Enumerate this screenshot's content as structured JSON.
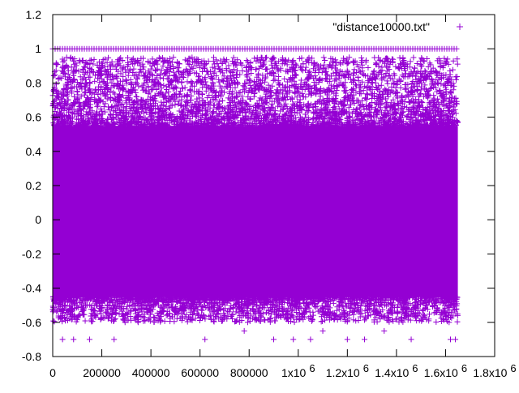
{
  "colors": {
    "series": "#9400d3",
    "axis": "#000000",
    "background": "#ffffff"
  },
  "chart_data": {
    "type": "scatter",
    "marker": "plus",
    "title": "",
    "xlabel": "",
    "ylabel": "",
    "xlim": [
      0,
      1800000
    ],
    "ylim": [
      -0.8,
      1.2
    ],
    "grid": false,
    "legend_position": "top-right",
    "x_ticks": [
      {
        "value": 0,
        "label": "0"
      },
      {
        "value": 200000,
        "label": "200000"
      },
      {
        "value": 400000,
        "label": "400000"
      },
      {
        "value": 600000,
        "label": "600000"
      },
      {
        "value": 800000,
        "label": "800000"
      },
      {
        "value": 1000000,
        "label": "1x10",
        "exp": "6"
      },
      {
        "value": 1200000,
        "label": "1.2x10",
        "exp": "6"
      },
      {
        "value": 1400000,
        "label": "1.4x10",
        "exp": "6"
      },
      {
        "value": 1600000,
        "label": "1.6x10",
        "exp": "6"
      },
      {
        "value": 1800000,
        "label": "1.8x10",
        "exp": "6"
      }
    ],
    "y_ticks": [
      {
        "value": -0.8,
        "label": "-0.8"
      },
      {
        "value": -0.6,
        "label": "-0.6"
      },
      {
        "value": -0.4,
        "label": "-0.4"
      },
      {
        "value": -0.2,
        "label": "-0.2"
      },
      {
        "value": 0,
        "label": "0"
      },
      {
        "value": 0.2,
        "label": "0.2"
      },
      {
        "value": 0.4,
        "label": "0.4"
      },
      {
        "value": 0.6,
        "label": "0.6"
      },
      {
        "value": 0.8,
        "label": "0.8"
      },
      {
        "value": 1,
        "label": "1"
      },
      {
        "value": 1.2,
        "label": "1.2"
      }
    ],
    "series": [
      {
        "name": "\"distance10000.txt\"",
        "x_range": [
          0,
          1650000
        ],
        "dense_band": [
          -0.45,
          0.55
        ],
        "scatter_upper": [
          0.55,
          0.95
        ],
        "scatter_lower": [
          -0.6,
          -0.45
        ],
        "plateau_value": 1,
        "sparse_lows": [
          {
            "x": 40000,
            "y": -0.7
          },
          {
            "x": 85000,
            "y": -0.7
          },
          {
            "x": 150000,
            "y": -0.7
          },
          {
            "x": 250000,
            "y": -0.7
          },
          {
            "x": 620000,
            "y": -0.7
          },
          {
            "x": 780000,
            "y": -0.65
          },
          {
            "x": 900000,
            "y": -0.7
          },
          {
            "x": 980000,
            "y": -0.7
          },
          {
            "x": 1050000,
            "y": -0.7
          },
          {
            "x": 1100000,
            "y": -0.65
          },
          {
            "x": 1200000,
            "y": -0.7
          },
          {
            "x": 1270000,
            "y": -0.7
          },
          {
            "x": 1350000,
            "y": -0.65
          },
          {
            "x": 1460000,
            "y": -0.7
          },
          {
            "x": 1620000,
            "y": -0.7
          },
          {
            "x": 1640000,
            "y": -0.7
          }
        ]
      }
    ]
  }
}
